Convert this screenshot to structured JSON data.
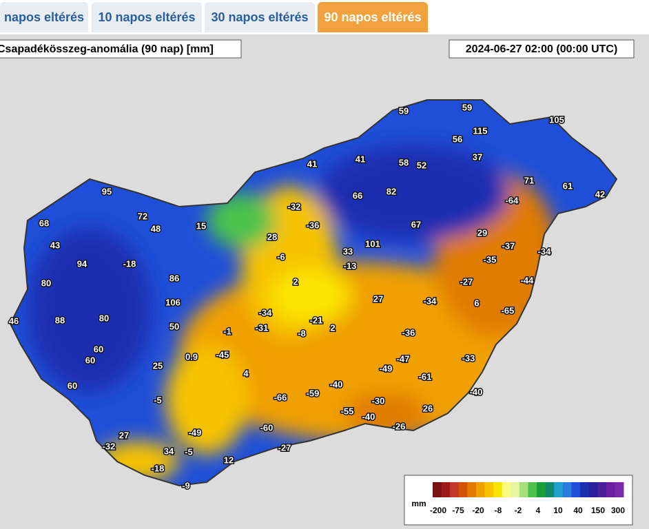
{
  "tabs": [
    "napos eltérés",
    "10 napos eltérés",
    "30 napos eltérés",
    "90 napos eltérés"
  ],
  "active_tab": 3,
  "map": {
    "title": "Csapadékösszeg-anomália (90 nap) [mm]",
    "timestamp": "2024-06-27 02:00 (00:00 UTC)",
    "stations": [
      59,
      59,
      105,
      115,
      56,
      41,
      41,
      58,
      52,
      37,
      71,
      61,
      42,
      95,
      66,
      82,
      -64,
      72,
      -32,
      68,
      48,
      15,
      -36,
      67,
      29,
      28,
      101,
      43,
      -37,
      -34,
      -18,
      94,
      -6,
      33,
      -13,
      -35,
      80,
      86,
      2,
      -27,
      -44,
      106,
      -34,
      27,
      -34,
      6,
      -65,
      46,
      88,
      80,
      50,
      -1,
      -31,
      -21,
      -8,
      2,
      -36,
      60,
      60,
      0.9,
      -45,
      -47,
      -33,
      25,
      4,
      -49,
      -61,
      60,
      -40,
      -66,
      -59,
      -40,
      -5,
      -30,
      26,
      -55,
      -40,
      -26,
      27,
      -49,
      -60,
      -32,
      34,
      -5,
      -27,
      12,
      -18,
      -9
    ]
  },
  "legend": {
    "unit": "mm",
    "ticks": [
      -200,
      -75,
      -20,
      -8,
      -2,
      4,
      10,
      40,
      150,
      300
    ],
    "colors": [
      "#7a1010",
      "#9e1a1a",
      "#c0392b",
      "#d35400",
      "#e07b00",
      "#f0a000",
      "#f7c200",
      "#fbe400",
      "#fbfb80",
      "#e8f5a0",
      "#a6e07a",
      "#4cc24c",
      "#1a9e3a",
      "#0f8a6a",
      "#1fa0d0",
      "#2a7ae0",
      "#1f4fd8",
      "#1a2fb0",
      "#2a1f9a",
      "#4a1f9a",
      "#6a1fa0",
      "#7a2aa8"
    ]
  }
}
